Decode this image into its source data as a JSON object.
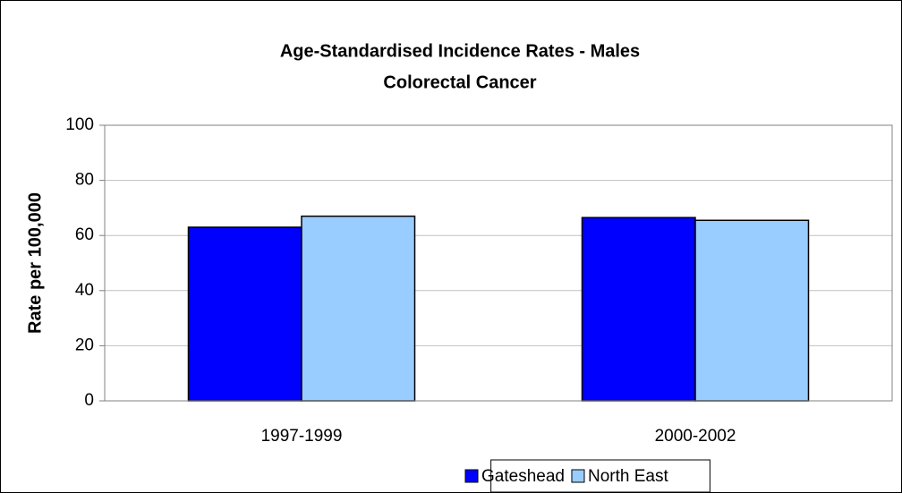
{
  "chart_data": {
    "type": "bar",
    "title": "Age-Standardised Incidence Rates - Males",
    "subtitle": "Colorectal Cancer",
    "y_label": "Rate per 100,000",
    "categories": [
      "1997-1999",
      "2000-2002"
    ],
    "series": [
      {
        "name": "Gateshead",
        "color": "#0000ff",
        "values": [
          63,
          66.5
        ]
      },
      {
        "name": "North East",
        "color": "#99ccff",
        "values": [
          67,
          65.5
        ]
      }
    ],
    "ylim": [
      0,
      100
    ],
    "yticks": [
      0,
      20,
      40,
      60,
      80,
      100
    ],
    "grid": true,
    "legend": "bottom"
  }
}
